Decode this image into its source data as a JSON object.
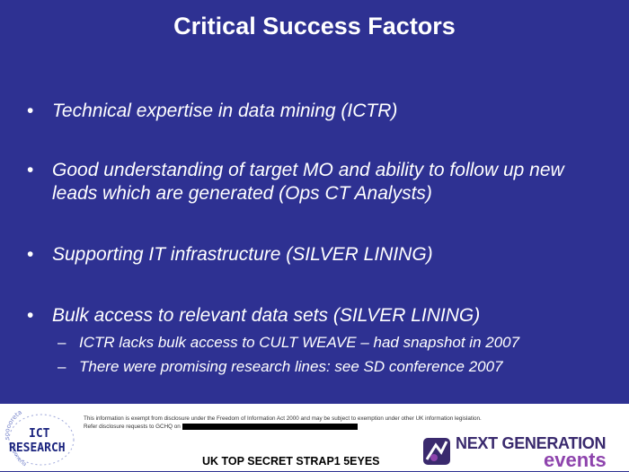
{
  "slide": {
    "title": "Critical Success Factors",
    "bullet_marker": "•",
    "sub_marker": "–",
    "bullets": [
      {
        "text": "Technical expertise in data mining (ICTR)"
      },
      {
        "text": "Good understanding of target MO and ability to follow up new leads which are generated (Ops CT Analysts)"
      },
      {
        "text": "Supporting IT infrastructure (SILVER LINING)"
      },
      {
        "text": "Bulk access to relevant data sets (SILVER LINING)",
        "sub_items": [
          "ICTR lacks bulk access to CULT WEAVE – had snapshot in 2007",
          "There were promising research lines: see SD conference 2007"
        ]
      }
    ]
  },
  "footer": {
    "ict_logo": {
      "line1": "ICT",
      "line2": "RESEARCH",
      "ring_text_top": "sooooreta",
      "ring_text_bottom": "nnoneria"
    },
    "disclaimer_line1": "This information is exempt from disclosure under the Freedom of Information Act 2000 and may be subject to exemption under other UK information legislation.",
    "disclaimer_line2": "Refer disclosure requests to GCHQ on",
    "classification": "UK TOP SECRET STRAP1 5EYES",
    "ng_logo": {
      "line1": "NEXT GENERATION",
      "line2": "events"
    }
  },
  "colors": {
    "background": "#2e3192",
    "text": "#ffffff",
    "ng_purple": "#8e44ad"
  }
}
